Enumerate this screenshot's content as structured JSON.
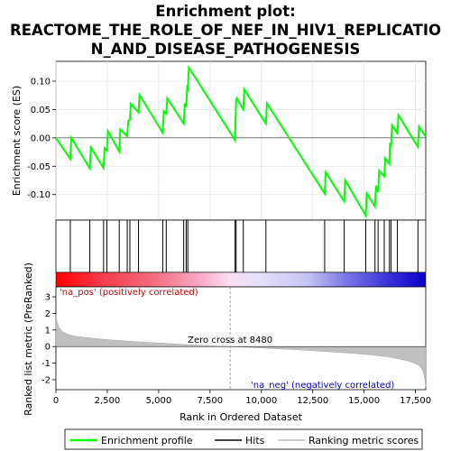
{
  "chart_data": {
    "type": "line",
    "title_lines": [
      "Enrichment plot:",
      "REACTOME_THE_ROLE_OF_NEF_IN_HIV1_REPLICATIO",
      "N_AND_DISEASE_PATHOGENESIS"
    ],
    "es_panel": {
      "ylabel": "Enrichment score (ES)",
      "ylim": [
        -0.145,
        0.135
      ],
      "yticks": [
        -0.1,
        -0.05,
        0.0,
        0.05,
        0.1
      ],
      "ytick_labels": [
        "-0.10",
        "-0.05",
        "0.00",
        "0.05",
        "0.10"
      ],
      "series": [
        {
          "name": "Enrichment profile",
          "color": "#00ff00",
          "x": [
            0,
            700,
            750,
            1650,
            1700,
            2320,
            2370,
            2480,
            2530,
            3080,
            3130,
            3470,
            3520,
            3600,
            3650,
            4020,
            4070,
            5200,
            5250,
            5370,
            5420,
            6220,
            6270,
            6340,
            6390,
            6420,
            6470,
            8720,
            8740,
            8770,
            8800,
            9120,
            9170,
            10220,
            10270,
            13080,
            13130,
            14030,
            14080,
            15080,
            15130,
            15530,
            15580,
            15680,
            15730,
            15980,
            16030,
            16230,
            16260,
            16310,
            16360,
            16620,
            16670,
            17620,
            17670,
            18000
          ],
          "y": [
            0.0,
            -0.037,
            0.0,
            -0.054,
            -0.017,
            -0.053,
            -0.018,
            -0.022,
            0.012,
            -0.024,
            0.015,
            0.003,
            0.03,
            0.032,
            0.06,
            0.045,
            0.076,
            0.009,
            0.047,
            0.043,
            0.07,
            0.025,
            0.061,
            0.055,
            0.088,
            0.086,
            0.124,
            -0.004,
            0.03,
            0.068,
            0.07,
            0.05,
            0.085,
            0.025,
            0.061,
            -0.098,
            -0.061,
            -0.112,
            -0.075,
            -0.137,
            -0.098,
            -0.121,
            -0.084,
            -0.096,
            -0.058,
            -0.068,
            -0.036,
            -0.046,
            -0.012,
            -0.014,
            0.022,
            0.008,
            0.04,
            -0.016,
            0.02,
            0.002
          ]
        }
      ]
    },
    "hits": {
      "name": "Hits",
      "positions": [
        700,
        1650,
        2320,
        2480,
        3080,
        3470,
        3600,
        4020,
        5200,
        5370,
        6220,
        6340,
        6420,
        8720,
        8770,
        9120,
        10220,
        13080,
        14030,
        15080,
        15530,
        15680,
        15980,
        16230,
        16310,
        16620,
        17620
      ]
    },
    "ranked_metric": {
      "name": "Ranking metric scores",
      "ylabel": "Ranked list metric (PreRanked)",
      "ylim": [
        -2.6,
        3.6
      ],
      "yticks": [
        -2,
        -1,
        0,
        1,
        2,
        3
      ],
      "ytick_labels": [
        "-2",
        "-1",
        "0",
        "1",
        "2",
        "3"
      ],
      "x": [
        0,
        60,
        150,
        300,
        500,
        800,
        1200,
        1800,
        2500,
        3500,
        4500,
        5500,
        6500,
        7500,
        8480,
        9500,
        10500,
        11500,
        12500,
        13500,
        14500,
        15300,
        16000,
        16600,
        17100,
        17400,
        17650,
        17800,
        17880,
        17950,
        18000
      ],
      "y": [
        1.9,
        1.45,
        1.15,
        0.92,
        0.78,
        0.66,
        0.58,
        0.5,
        0.42,
        0.33,
        0.25,
        0.18,
        0.11,
        0.05,
        0.0,
        -0.06,
        -0.12,
        -0.18,
        -0.25,
        -0.33,
        -0.42,
        -0.5,
        -0.6,
        -0.72,
        -0.86,
        -0.98,
        -1.12,
        -1.32,
        -1.55,
        -1.95,
        -2.45
      ]
    },
    "xlabel": "Rank in Ordered Dataset",
    "xlim": [
      0,
      18000
    ],
    "xticks": [
      0,
      2500,
      5000,
      7500,
      10000,
      12500,
      15000,
      17500
    ],
    "xtick_labels": [
      "0",
      "2,500",
      "5,000",
      "7,500",
      "10,000",
      "12,500",
      "15,000",
      "17,500"
    ],
    "zero_cross": 8480,
    "zero_cross_label": "Zero cross at 8480",
    "pos_label": "'na_pos' (positively correlated)",
    "neg_label": "'na_neg' (negatively correlated)",
    "legend": [
      {
        "label": "Enrichment profile",
        "color": "#00ff00"
      },
      {
        "label": "Hits",
        "color": "#000000"
      },
      {
        "label": "Ranking metric scores",
        "color": "#c0c0c0"
      }
    ],
    "legend_position": "bottom"
  }
}
